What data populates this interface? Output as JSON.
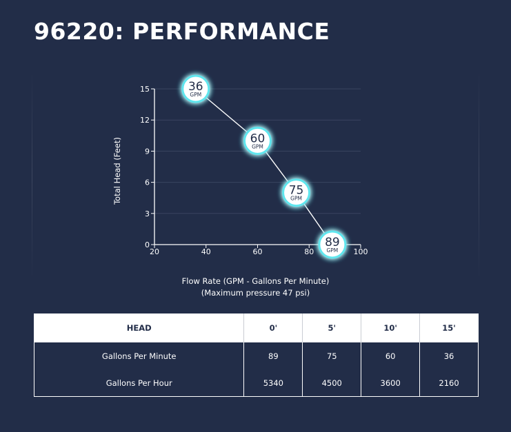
{
  "title": "96220: PERFORMANCE",
  "chart_data": {
    "type": "line",
    "xlabel": "Flow Rate (GPM - Gallons Per Minute)",
    "xlabel_note": "(Maximum pressure 47 psi)",
    "ylabel": "Total Head (Feet)",
    "xlim": [
      20,
      100
    ],
    "ylim": [
      0,
      15
    ],
    "x_ticks": [
      20,
      40,
      60,
      80,
      100
    ],
    "y_ticks": [
      0,
      3,
      6,
      9,
      12,
      15
    ],
    "grid": true,
    "points": [
      {
        "x": 36,
        "y": 15,
        "label": "36",
        "unit": "GPM"
      },
      {
        "x": 60,
        "y": 10,
        "label": "60",
        "unit": "GPM"
      },
      {
        "x": 75,
        "y": 5,
        "label": "75",
        "unit": "GPM"
      },
      {
        "x": 89,
        "y": 0,
        "label": "89",
        "unit": "GPM"
      }
    ],
    "colors": {
      "line": "#ffffff",
      "glow": "#5fe6ee",
      "grid": "#3a4560",
      "marker_fill": "#ffffff",
      "marker_text": "#222d48"
    }
  },
  "table": {
    "headers": [
      "HEAD",
      "0'",
      "5'",
      "10'",
      "15'"
    ],
    "rows": [
      [
        "Gallons Per Minute",
        "89",
        "75",
        "60",
        "36"
      ],
      [
        "Gallons Per Hour",
        "5340",
        "4500",
        "3600",
        "2160"
      ]
    ]
  }
}
